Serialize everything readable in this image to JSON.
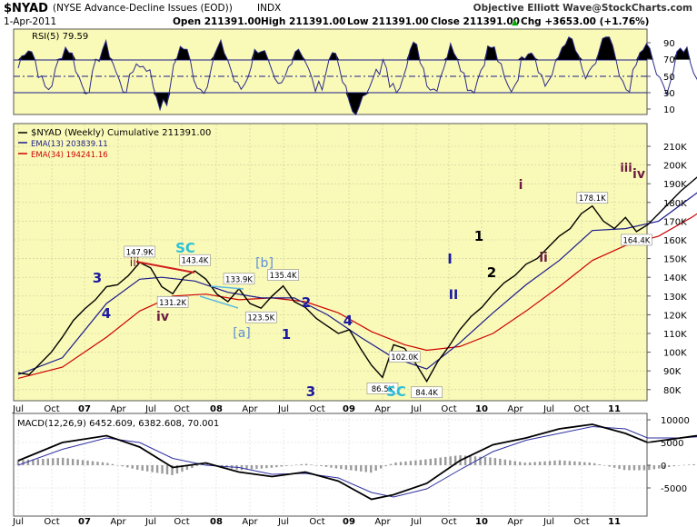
{
  "header": {
    "symbol": "$NYAD",
    "name": "(NYSE Advance-Decline Issues (EOD))",
    "index": "INDX",
    "date": "1-Apr-2011",
    "open": "Open 211391.00",
    "high": "High 211391.00",
    "low": "Low 211391.00",
    "close": "Close 211391.00",
    "chg": "Chg +3653.00 (+1.76%)",
    "up_arrow": "▲",
    "credit": "Objective Elliott Wave@StockCharts.com"
  },
  "rsi_panel": {
    "label": "RSI(5) 79.59",
    "ticks": [
      "90",
      "70",
      "50",
      "30",
      "10"
    ]
  },
  "main_panel": {
    "legend": [
      {
        "text": "$NYAD (Weekly) Cumulative 211391.00",
        "color": "#000000"
      },
      {
        "text": "EMA(13) 203839.11",
        "color": "#1a1a8c"
      },
      {
        "text": "EMA(34) 194241.16",
        "color": "#cc0000"
      }
    ],
    "ticks": [
      "210K",
      "200K",
      "190K",
      "180K",
      "170K",
      "160K",
      "150K",
      "140K",
      "130K",
      "120K",
      "110K",
      "100K",
      "90K",
      "80K"
    ],
    "price_labels": [
      "147.9K",
      "143.4K",
      "133.9K",
      "135.4K",
      "131.2K",
      "123.5K",
      "102.0K",
      "86.5K",
      "84.4K",
      "178.1K",
      "164.4K"
    ],
    "wave_labels": [
      "iii",
      "SC",
      "[b]",
      "3",
      "4",
      "iv",
      "[a]",
      "2",
      "1",
      "4",
      "3",
      "SC",
      "I",
      "1",
      "II",
      "2",
      "i",
      "ii",
      "iii",
      "iv"
    ]
  },
  "macd_panel": {
    "label": "MACD(12,26,9) 6452.609, 6382.608, 70.001",
    "ticks": [
      "10000",
      "5000",
      "0",
      "-5000"
    ]
  },
  "x_axis": [
    "Jul",
    "Oct",
    "07",
    "Apr",
    "Jul",
    "Oct",
    "08",
    "Apr",
    "Jul",
    "Oct",
    "09",
    "Apr",
    "Jul",
    "Oct",
    "10",
    "Apr",
    "Jul",
    "Oct",
    "11"
  ],
  "colors": {
    "panel_bg": "#fafab8",
    "price": "#000000",
    "ema13": "#1a1a8c",
    "ema34": "#cc0000",
    "wave_blue": "#1a1aa0",
    "wave_cyan": "#2cc0d8",
    "wave_light": "#5b8ed8",
    "wave_maroon": "#6b1a40"
  },
  "chart_data": {
    "type": "line",
    "title": "$NYAD (NYSE Advance-Decline Issues (EOD)) INDX",
    "x": [
      "2006-07",
      "2006-10",
      "2007-01",
      "2007-04",
      "2007-07",
      "2007-10",
      "2008-01",
      "2008-04",
      "2008-07",
      "2008-10",
      "2009-01",
      "2009-04",
      "2009-07",
      "2009-10",
      "2010-01",
      "2010-04",
      "2010-07",
      "2010-10",
      "2011-01"
    ],
    "series": [
      {
        "name": "$NYAD (Weekly) Cumulative",
        "values": [
          89000,
          108000,
          128000,
          143000,
          145000,
          136000,
          127000,
          131000,
          114000,
          93000,
          95000,
          104000,
          121000,
          141000,
          152000,
          173000,
          167000,
          185000,
          205000
        ]
      },
      {
        "name": "EMA(13)",
        "values": [
          88000,
          103000,
          123000,
          138000,
          141000,
          138000,
          130000,
          130000,
          120000,
          100000,
          93000,
          97000,
          115000,
          135000,
          147000,
          168000,
          167000,
          181000,
          200000
        ]
      },
      {
        "name": "EMA(34)",
        "values": [
          86000,
          95000,
          113000,
          128000,
          136000,
          136000,
          133000,
          131000,
          126000,
          113000,
          103000,
          101000,
          108000,
          124000,
          138000,
          156000,
          162000,
          175000,
          193000
        ]
      }
    ],
    "ylim": [
      75000,
      215000
    ],
    "ylabel": ""
  }
}
